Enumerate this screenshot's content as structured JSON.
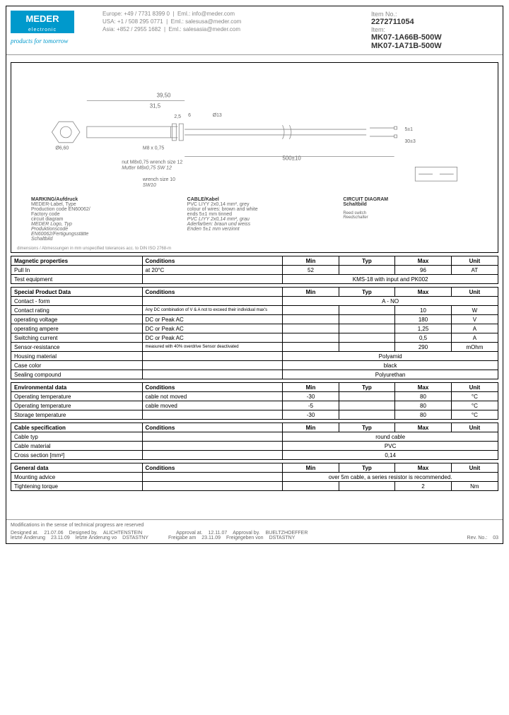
{
  "header": {
    "logo": "MEDER",
    "logo_sub": "electronic",
    "tagline": "products for tomorrow",
    "contacts": [
      {
        "region": "Europe:",
        "phone": "+49 / 7731 8399 0",
        "email_label": "Eml.:",
        "email": "info@meder.com"
      },
      {
        "region": "USA:",
        "phone": "+1 / 508 295 0771",
        "email_label": "Eml.:",
        "email": "salesusa@meder.com"
      },
      {
        "region": "Asia:",
        "phone": "+852 / 2955 1682",
        "email_label": "Eml.:",
        "email": "salesasia@meder.com"
      }
    ],
    "item_no_label": "Item No.:",
    "item_no": "2272711054",
    "item_label": "Item:",
    "item1": "MK07-1A66B-500W",
    "item2": "MK07-1A71B-500W"
  },
  "drawing": {
    "dims": {
      "d1": "39,50",
      "d2": "31,5",
      "d3": "2,5",
      "d4": "6",
      "d5": "Ø13",
      "d6": "Ø6,60",
      "d7": "5±1",
      "d8": "30±3",
      "d9": "500±10",
      "thread": "M8 x 0,75"
    },
    "nut_label": "nut M8x0,75 wrench size 12",
    "nut_label_it": "Mutter M8x0,75 SW 12",
    "wrench_label": "wrench size 10",
    "wrench_label_it": "SW10",
    "marking_title": "MARKING/Aufdruck",
    "marking_text": "MEDER-Label, Type\nProduction code EN60062/\nFactory code\ncircuit diagram",
    "marking_text_it": "MEDER Logo, Typ\nProduktionscode\nEN60062/Fertigungsstätte\nSchaltbild",
    "cable_title": "CABLE/Kabel",
    "cable_text": "PVC LIYY 2x0,14 mm², grey\ncolour of wires: brown and white\nends 5±1 mm tinned",
    "cable_text_it": "PVC LIYY 2x0,14 mm², grau\nAderfarben: braun und weiss\nEnden 5±1 mm verzinnt",
    "circuit_title": "CIRCUIT DIAGRAM\nSchaltbild",
    "dim_note": "dimensions / Abmessungen in mm\nunspecified tolerances acc. to DIN ISO 2768-m"
  },
  "tables": {
    "magnetic": {
      "title": "Magnetic properties",
      "headers": [
        "Conditions",
        "Min",
        "Typ",
        "Max",
        "Unit"
      ],
      "rows": [
        {
          "param": "Pull In",
          "cond": "at 20°C",
          "min": "52",
          "typ": "",
          "max": "96",
          "unit": "AT"
        },
        {
          "param": "Test equipment",
          "span": "KMS-18 with input and PK002"
        }
      ]
    },
    "special": {
      "title": "Special Product Data",
      "rows": [
        {
          "param": "Contact - form",
          "span": "A - NO"
        },
        {
          "param": "Contact rating",
          "cond": "Any DC combination of V & A not to exceed their individual max's",
          "min": "",
          "typ": "",
          "max": "10",
          "unit": "W"
        },
        {
          "param": "operating voltage",
          "cond": "DC or Peak AC",
          "min": "",
          "typ": "",
          "max": "180",
          "unit": "V"
        },
        {
          "param": "operating ampere",
          "cond": "DC or Peak AC",
          "min": "",
          "typ": "",
          "max": "1,25",
          "unit": "A"
        },
        {
          "param": "Switching current",
          "cond": "DC or Peak AC",
          "min": "",
          "typ": "",
          "max": "0,5",
          "unit": "A"
        },
        {
          "param": "Sensor-resistance",
          "cond": "measured with 40% overdrive Sensor deactivated",
          "min": "",
          "typ": "",
          "max": "290",
          "unit": "mOhm"
        },
        {
          "param": "Housing material",
          "span": "Polyamid"
        },
        {
          "param": "Case color",
          "span": "black"
        },
        {
          "param": "Sealing compound",
          "span": "Polyurethan"
        }
      ]
    },
    "environmental": {
      "title": "Environmental data",
      "rows": [
        {
          "param": "Operating temperature",
          "cond": "cable not moved",
          "min": "-30",
          "typ": "",
          "max": "80",
          "unit": "°C"
        },
        {
          "param": "Operating temperature",
          "cond": "cable moved",
          "min": "-5",
          "typ": "",
          "max": "80",
          "unit": "°C"
        },
        {
          "param": "Storage temperature",
          "cond": "",
          "min": "-30",
          "typ": "",
          "max": "80",
          "unit": "°C"
        }
      ]
    },
    "cable": {
      "title": "Cable specification",
      "rows": [
        {
          "param": "Cable typ",
          "span": "round cable"
        },
        {
          "param": "Cable material",
          "span": "PVC"
        },
        {
          "param": "Cross section [mm²]",
          "span": "0,14"
        }
      ]
    },
    "general": {
      "title": "General data",
      "rows": [
        {
          "param": "Mounting advice",
          "span": "over 5m cable, a series resistor is  recommended."
        },
        {
          "param": "Tightening torque",
          "cond": "",
          "min": "",
          "typ": "",
          "max": "2",
          "unit": "Nm"
        }
      ]
    }
  },
  "footer": {
    "note": "Modifications in the sense of technical progress are reserved",
    "designed_at": "Designed at.",
    "designed_at_v": "21.07.06",
    "designed_by": "Designed by.",
    "designed_by_v": "ALICHTENSTEIN",
    "approval_at": "Approval at.",
    "approval_at_v": "12.11.07",
    "approval_by": "Approval by.",
    "approval_by_v": "BUELTZHOEFFER",
    "last_change": "letzte Änderung",
    "last_change_v": "23.11.09",
    "last_change_by": "letzte Änderung vo",
    "last_change_by_v": "DSTASTNY",
    "release_at": "Freigabe am",
    "release_at_v": "23.11.09",
    "release_by": "Freigegeben von",
    "release_by_v": "DSTASTNY",
    "rev": "Rev. No.:",
    "rev_v": "03"
  }
}
